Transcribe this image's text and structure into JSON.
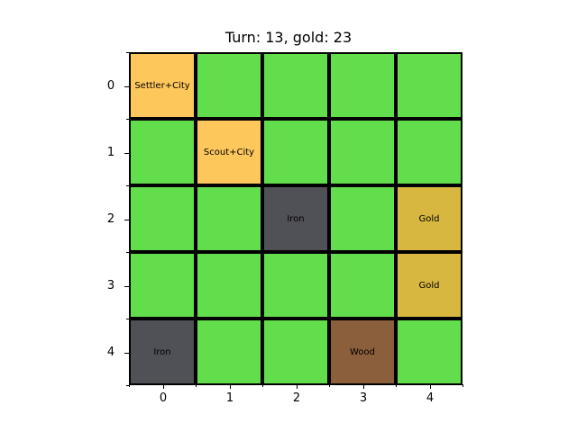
{
  "title": "Turn: 13, gold: 23",
  "grid": {
    "rows": [
      [
        {
          "terrain": "unit",
          "label": "Settler+City"
        },
        {
          "terrain": "grass",
          "label": ""
        },
        {
          "terrain": "grass",
          "label": ""
        },
        {
          "terrain": "grass",
          "label": ""
        },
        {
          "terrain": "grass",
          "label": ""
        }
      ],
      [
        {
          "terrain": "grass",
          "label": ""
        },
        {
          "terrain": "unit",
          "label": "Scout+City"
        },
        {
          "terrain": "grass",
          "label": ""
        },
        {
          "terrain": "grass",
          "label": ""
        },
        {
          "terrain": "grass",
          "label": ""
        }
      ],
      [
        {
          "terrain": "grass",
          "label": ""
        },
        {
          "terrain": "grass",
          "label": ""
        },
        {
          "terrain": "iron",
          "label": "Iron"
        },
        {
          "terrain": "grass",
          "label": ""
        },
        {
          "terrain": "gold",
          "label": "Gold"
        }
      ],
      [
        {
          "terrain": "grass",
          "label": ""
        },
        {
          "terrain": "grass",
          "label": ""
        },
        {
          "terrain": "grass",
          "label": ""
        },
        {
          "terrain": "grass",
          "label": ""
        },
        {
          "terrain": "gold",
          "label": "Gold"
        }
      ],
      [
        {
          "terrain": "iron",
          "label": "Iron"
        },
        {
          "terrain": "grass",
          "label": ""
        },
        {
          "terrain": "grass",
          "label": ""
        },
        {
          "terrain": "wood",
          "label": "Wood"
        },
        {
          "terrain": "grass",
          "label": ""
        }
      ]
    ]
  },
  "x_ticks": [
    "0",
    "1",
    "2",
    "3",
    "4"
  ],
  "y_ticks": [
    "0",
    "1",
    "2",
    "3",
    "4"
  ],
  "colors": {
    "grass": "#62dd4b",
    "unit": "#fec75b",
    "iron": "#505057",
    "gold": "#d7b73f",
    "wood": "#8b5e3c"
  }
}
